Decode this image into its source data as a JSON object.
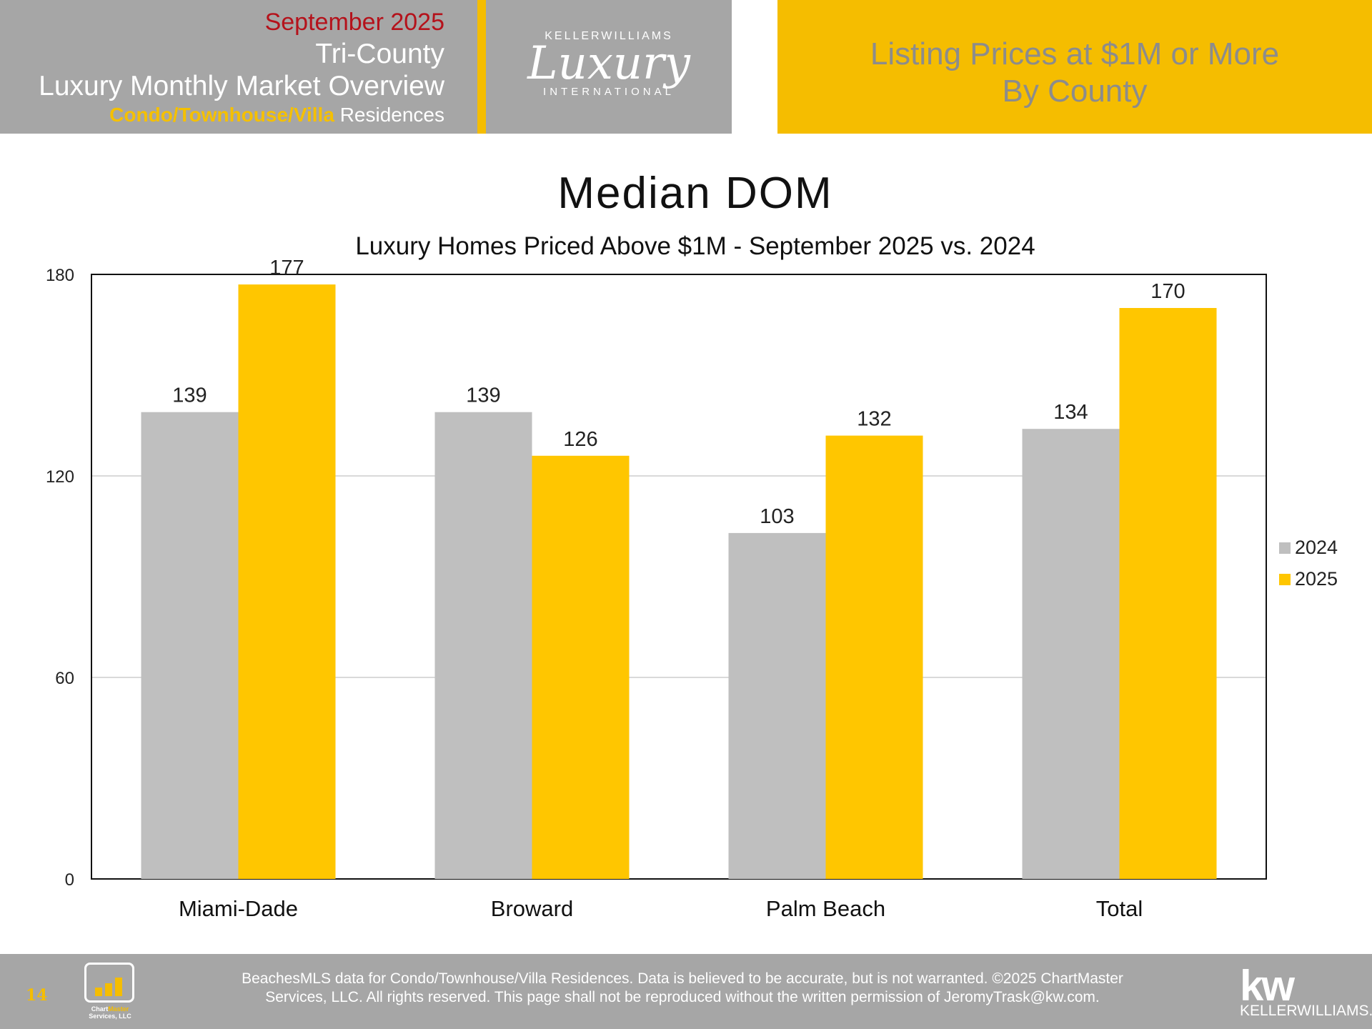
{
  "header": {
    "month": "September 2025",
    "region": "Tri-County",
    "report": "Luxury Monthly Market Overview",
    "segment_highlight": "Condo/Townhouse/Villa",
    "segment_rest": "Residences",
    "logo": {
      "top": "KELLERWILLIAMS",
      "script": "Luxury",
      "bottom": "INTERNATIONAL"
    },
    "banner_line1": "Listing Prices at $1M or More",
    "banner_line2": "By County"
  },
  "chart_data": {
    "type": "bar",
    "title": "Median DOM",
    "subtitle": "Luxury Homes Priced Above $1M - September 2025 vs. 2024",
    "categories": [
      "Miami-Dade",
      "Broward",
      "Palm Beach",
      "Total"
    ],
    "series": [
      {
        "name": "2024",
        "values": [
          139,
          139,
          103,
          134
        ],
        "color": "#bfbfbf"
      },
      {
        "name": "2025",
        "values": [
          177,
          126,
          132,
          170
        ],
        "color": "#ffc600"
      }
    ],
    "ylim": [
      0,
      180
    ],
    "yticks": [
      0,
      60,
      120,
      180
    ],
    "grid": true,
    "legend": "right"
  },
  "footer": {
    "page_number": "14",
    "logo_name_1": "Chart",
    "logo_name_2": "Master",
    "logo_name_3": "Services, LLC",
    "line1": "BeachesMLS data for Condo/Townhouse/Villa Residences.  Data is believed to be accurate, but is not warranted.   ©2025  ChartMaster",
    "line2": "Services, LLC.  All rights reserved. This page shall not be reproduced without the written permission of JeromyTrask@kw.com.",
    "kw_mark": "kw",
    "kw_word": "KELLERWILLIAMS."
  }
}
